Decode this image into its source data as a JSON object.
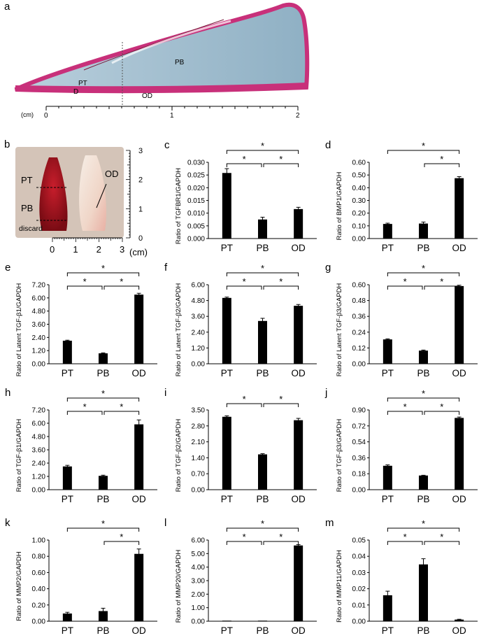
{
  "figure": {
    "panel_a": {
      "letter": "a",
      "labels": {
        "PT": "PT",
        "PB": "PB",
        "D": "D",
        "OD": "OD"
      },
      "scale": {
        "unit": "(cm)",
        "ticks": [
          "0",
          "1",
          "2"
        ]
      }
    },
    "panel_b": {
      "letter": "b",
      "labels": {
        "PT": "PT",
        "PB": "PB",
        "OD": "OD",
        "discard": "discard"
      },
      "scale_right": [
        "3",
        "2",
        "1",
        "0"
      ],
      "scale_bottom": [
        "0",
        "1",
        "2",
        "3"
      ],
      "unit": "(cm)"
    }
  },
  "colors": {
    "bar": "#000000",
    "stain_pink": "#c8307a",
    "stain_blue": "#9ab8cc",
    "tooth_red": "#a8141e"
  },
  "chart_data": [
    {
      "id": "c",
      "letter": "c",
      "type": "bar",
      "ylabel": "Ratio of TGFBR1/GAPDH",
      "categories": [
        "PT",
        "PB",
        "OD"
      ],
      "values": [
        0.0258,
        0.0075,
        0.0116
      ],
      "errors": [
        0.0017,
        0.0009,
        0.0007
      ],
      "ylim": [
        0,
        0.03
      ],
      "ticks": [
        "0.000",
        "0.005",
        "0.010",
        "0.015",
        "0.020",
        "0.025",
        "0.030"
      ],
      "significance": [
        {
          "from": 0,
          "to": 2,
          "label": "*"
        },
        {
          "from": 0,
          "to": 1,
          "label": "*"
        },
        {
          "from": 1,
          "to": 2,
          "label": "*"
        }
      ]
    },
    {
      "id": "d",
      "letter": "d",
      "type": "bar",
      "ylabel": "Ratio of BMP1/GAPDH",
      "categories": [
        "PT",
        "PB",
        "OD"
      ],
      "values": [
        0.115,
        0.118,
        0.475
      ],
      "errors": [
        0.006,
        0.012,
        0.012
      ],
      "ylim": [
        0,
        0.6
      ],
      "ticks": [
        "0.00",
        "0.10",
        "0.20",
        "0.30",
        "0.40",
        "0.50",
        "0.60"
      ],
      "significance": [
        {
          "from": 0,
          "to": 2,
          "label": "*"
        },
        {
          "from": 1,
          "to": 2,
          "label": "*"
        }
      ]
    },
    {
      "id": "e",
      "letter": "e",
      "type": "bar",
      "ylabel": "Ratio of Latent TGF-β1/GAPDH",
      "categories": [
        "PT",
        "PB",
        "OD"
      ],
      "values": [
        2.1,
        0.95,
        6.3
      ],
      "errors": [
        0.05,
        0.04,
        0.12
      ],
      "ylim": [
        0,
        7.2
      ],
      "ticks": [
        "0.00",
        "1.20",
        "2.40",
        "3.60",
        "4.80",
        "6.00",
        "7.20"
      ],
      "significance": [
        {
          "from": 0,
          "to": 2,
          "label": "*"
        },
        {
          "from": 0,
          "to": 1,
          "label": "*"
        },
        {
          "from": 1,
          "to": 2,
          "label": "*"
        }
      ]
    },
    {
      "id": "f",
      "letter": "f",
      "type": "bar",
      "ylabel": "Ratio of Latent TGF-β2/GAPDH",
      "categories": [
        "PT",
        "PB",
        "OD"
      ],
      "values": [
        5.0,
        3.25,
        4.4
      ],
      "errors": [
        0.06,
        0.2,
        0.1
      ],
      "ylim": [
        0,
        6.0
      ],
      "ticks": [
        "0.00",
        "1.20",
        "2.40",
        "3.60",
        "4.80",
        "6.00"
      ],
      "significance": [
        {
          "from": 0,
          "to": 2,
          "label": "*"
        },
        {
          "from": 0,
          "to": 1,
          "label": "*"
        },
        {
          "from": 1,
          "to": 2,
          "label": "*"
        }
      ]
    },
    {
      "id": "g",
      "letter": "g",
      "type": "bar",
      "ylabel": "Ratio of Latent TGF-β3/GAPDH",
      "categories": [
        "PT",
        "PB",
        "OD"
      ],
      "values": [
        0.185,
        0.1,
        0.59
      ],
      "errors": [
        0.004,
        0.004,
        0.006
      ],
      "ylim": [
        0,
        0.6
      ],
      "ticks": [
        "0.00",
        "0.12",
        "0.24",
        "0.36",
        "0.48",
        "0.60"
      ],
      "significance": [
        {
          "from": 0,
          "to": 2,
          "label": "*"
        },
        {
          "from": 0,
          "to": 1,
          "label": "*"
        },
        {
          "from": 1,
          "to": 2,
          "label": "*"
        }
      ]
    },
    {
      "id": "h",
      "letter": "h",
      "type": "bar",
      "ylabel": "Ratio of TGF-β1/GAPDH",
      "categories": [
        "PT",
        "PB",
        "OD"
      ],
      "values": [
        2.1,
        1.25,
        5.9
      ],
      "errors": [
        0.1,
        0.06,
        0.4
      ],
      "ylim": [
        0,
        7.2
      ],
      "ticks": [
        "0.00",
        "1.20",
        "2.40",
        "3.60",
        "4.80",
        "6.00",
        "7.20"
      ],
      "significance": [
        {
          "from": 0,
          "to": 2,
          "label": "*"
        },
        {
          "from": 0,
          "to": 1,
          "label": "*"
        },
        {
          "from": 1,
          "to": 2,
          "label": "*"
        }
      ]
    },
    {
      "id": "i",
      "letter": "i",
      "type": "bar",
      "ylabel": "Ratio of TGF-β2/GAPDH",
      "categories": [
        "PT",
        "PB",
        "OD"
      ],
      "values": [
        3.2,
        1.55,
        3.05
      ],
      "errors": [
        0.04,
        0.03,
        0.08
      ],
      "ylim": [
        0,
        3.5
      ],
      "ticks": [
        "0.00",
        "0.70",
        "1.40",
        "2.10",
        "2.80",
        "3.50"
      ],
      "significance": [
        {
          "from": 0,
          "to": 1,
          "label": "*"
        },
        {
          "from": 1,
          "to": 2,
          "label": "*"
        }
      ]
    },
    {
      "id": "j",
      "letter": "j",
      "type": "bar",
      "ylabel": "Ratio of TGF-β3/GAPDH",
      "categories": [
        "PT",
        "PB",
        "OD"
      ],
      "values": [
        0.27,
        0.16,
        0.81
      ],
      "errors": [
        0.01,
        0.003,
        0.01
      ],
      "ylim": [
        0,
        0.9
      ],
      "ticks": [
        "0.00",
        "0.18",
        "0.36",
        "0.54",
        "0.72",
        "0.90"
      ],
      "significance": [
        {
          "from": 0,
          "to": 2,
          "label": "*"
        },
        {
          "from": 0,
          "to": 1,
          "label": "*"
        },
        {
          "from": 1,
          "to": 2,
          "label": "*"
        }
      ]
    },
    {
      "id": "k",
      "letter": "k",
      "type": "bar",
      "ylabel": "Ratio of MMP2/GAPDH",
      "categories": [
        "PT",
        "PB",
        "OD"
      ],
      "values": [
        0.095,
        0.125,
        0.83
      ],
      "errors": [
        0.015,
        0.035,
        0.06
      ],
      "ylim": [
        0,
        1.0
      ],
      "ticks": [
        "0.00",
        "0.20",
        "0.40",
        "0.60",
        "0.80",
        "1.00"
      ],
      "significance": [
        {
          "from": 0,
          "to": 2,
          "label": "*"
        },
        {
          "from": 1,
          "to": 2,
          "label": "*"
        }
      ]
    },
    {
      "id": "l",
      "letter": "l",
      "type": "bar",
      "ylabel": "Ratio of MMP20/GAPDH",
      "categories": [
        "PT",
        "PB",
        "OD"
      ],
      "values": [
        0.005,
        0.005,
        5.6
      ],
      "errors": [
        0.0,
        0.0,
        0.06
      ],
      "ylim": [
        0,
        6.0
      ],
      "ticks": [
        "0.00",
        "1.00",
        "2.00",
        "3.00",
        "4.00",
        "5.00",
        "6.00"
      ],
      "significance": [
        {
          "from": 0,
          "to": 2,
          "label": "*"
        },
        {
          "from": 0,
          "to": 1,
          "label": "*"
        },
        {
          "from": 1,
          "to": 2,
          "label": "*"
        }
      ]
    },
    {
      "id": "m",
      "letter": "m",
      "type": "bar",
      "ylabel": "Ratio of MMP11/GAPDH",
      "categories": [
        "PT",
        "PB",
        "OD"
      ],
      "values": [
        0.016,
        0.035,
        0.001
      ],
      "errors": [
        0.0025,
        0.0035,
        0.0002
      ],
      "ylim": [
        0,
        0.05
      ],
      "ticks": [
        "0.00",
        "0.01",
        "0.02",
        "0.03",
        "0.04",
        "0.05"
      ],
      "significance": [
        {
          "from": 0,
          "to": 2,
          "label": "*"
        },
        {
          "from": 0,
          "to": 1,
          "label": "*"
        },
        {
          "from": 1,
          "to": 2,
          "label": "*"
        }
      ]
    }
  ]
}
